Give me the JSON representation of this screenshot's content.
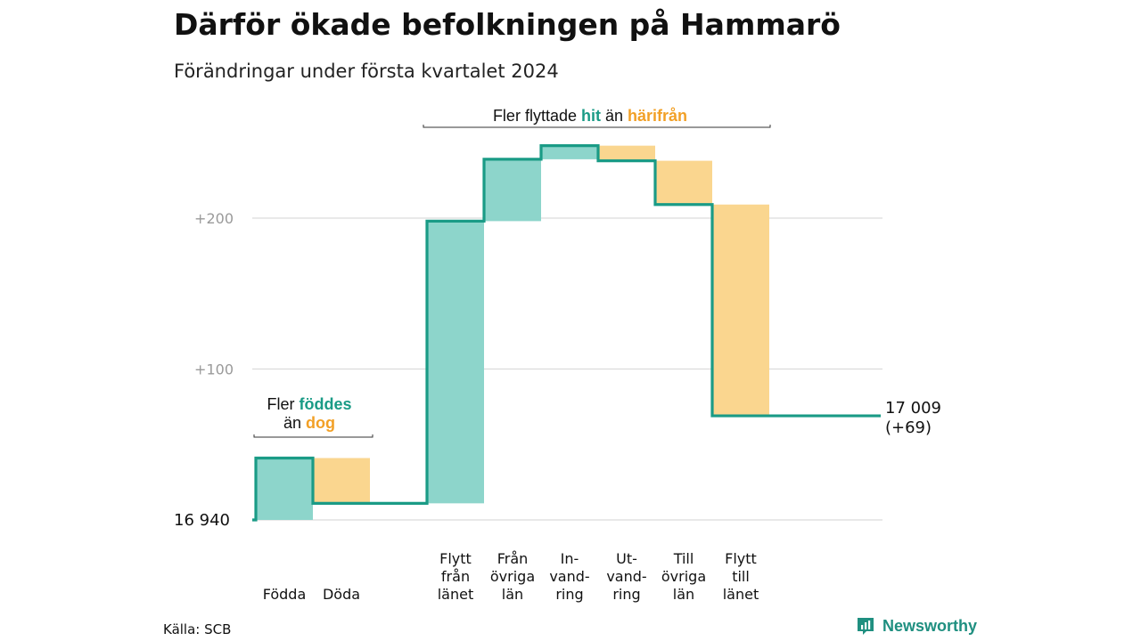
{
  "title": "Därför ökade befolkningen på Hammarö",
  "subtitle": "Förändringar under första kvartalet 2024",
  "source": "Källa: SCB",
  "brand": {
    "name": "Newsworthy",
    "icon": "chart-logo-icon",
    "color": "#1f8f80"
  },
  "colors": {
    "increase": "#8dd5cb",
    "decrease": "#fad68f",
    "line": "#1a9b86",
    "teal_text": "#1a9b86",
    "orange_text": "#f2a026"
  },
  "chart_data": {
    "type": "waterfall",
    "title": "Därför ökade befolkningen på Hammarö",
    "subtitle": "Förändringar under första kvartalet 2024",
    "start_value": 16940,
    "start_label": "16  940",
    "end_label": [
      "17 009",
      "(+69)"
    ],
    "yticks": [
      {
        "value": 100,
        "label": "+100"
      },
      {
        "value": 200,
        "label": "+200"
      }
    ],
    "ylim": [
      0,
      250
    ],
    "grid": true,
    "steps": [
      {
        "label": [
          "Födda"
        ],
        "change": 41
      },
      {
        "label": [
          "Döda"
        ],
        "change": -30
      },
      {
        "label": [
          "Flytt",
          "från",
          "länet"
        ],
        "change": 187
      },
      {
        "label": [
          "Från",
          "övriga",
          "län"
        ],
        "change": 41
      },
      {
        "label": [
          "In-",
          "vand-",
          "ring"
        ],
        "change": 9
      },
      {
        "label": [
          "Ut-",
          "vand-",
          "ring"
        ],
        "change": -10
      },
      {
        "label": [
          "Till",
          "övriga",
          "län"
        ],
        "change": -29
      },
      {
        "label": [
          "Flytt",
          "till",
          "länet"
        ],
        "change": -140
      }
    ],
    "annotations": [
      {
        "parts": [
          {
            "text": "Fler ",
            "style": "plain"
          },
          {
            "text": "föddes",
            "style": "teal"
          }
        ],
        "parts2": [
          {
            "text": "än ",
            "style": "plain"
          },
          {
            "text": "dog",
            "style": "orange"
          }
        ]
      },
      {
        "parts": [
          {
            "text": "Fler flyttade ",
            "style": "plain"
          },
          {
            "text": "hit",
            "style": "teal"
          },
          {
            "text": " än ",
            "style": "plain"
          },
          {
            "text": "härifrån",
            "style": "orange"
          }
        ]
      }
    ]
  }
}
